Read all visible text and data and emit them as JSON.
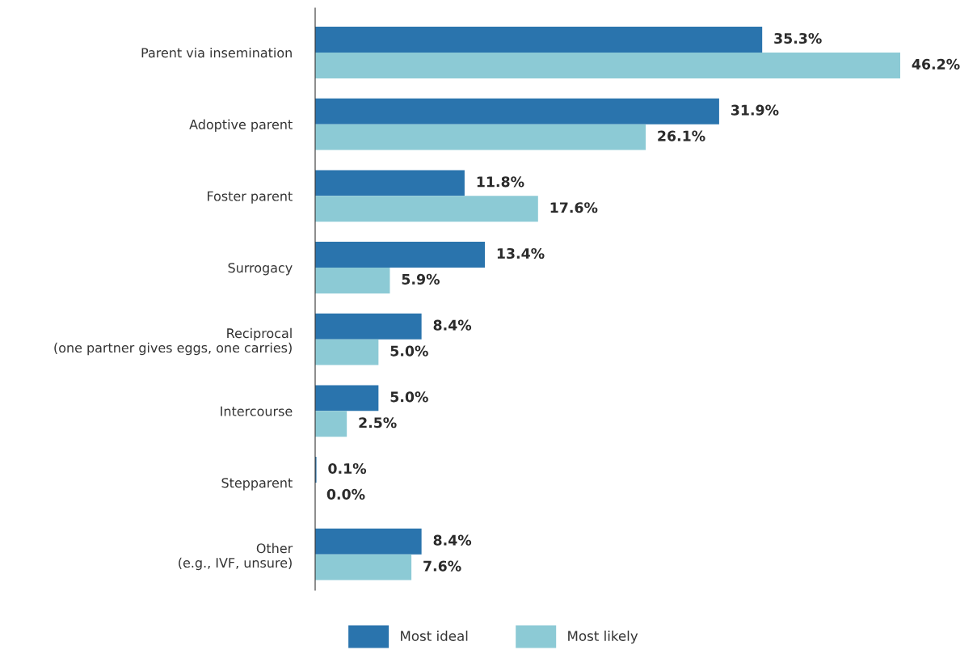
{
  "chart_data": {
    "type": "bar",
    "orientation": "horizontal",
    "categories": [
      "Parent via insemination",
      "Adoptive parent",
      "Foster parent",
      "Surrogacy",
      "Reciprocal\n(one partner gives eggs, one carries)",
      "Intercourse",
      "Stepparent",
      "Other\n(e.g., IVF, unsure)"
    ],
    "series": [
      {
        "name": "Most ideal",
        "color": "#2a74ad",
        "values": [
          35.3,
          31.9,
          11.8,
          13.4,
          8.4,
          5.0,
          0.1,
          8.4
        ],
        "value_labels": [
          "35.3%",
          "31.9%",
          "11.8%",
          "13.4%",
          "8.4%",
          "5.0%",
          "0.1%",
          "8.4%"
        ]
      },
      {
        "name": "Most likely",
        "color": "#8ccad5",
        "values": [
          46.2,
          26.1,
          17.6,
          5.9,
          5.0,
          2.5,
          0.0,
          7.6
        ],
        "value_labels": [
          "46.2%",
          "26.1%",
          "17.6%",
          "5.9%",
          "5.0%",
          "2.5%",
          "0.0%",
          "7.6%"
        ]
      }
    ],
    "legend": "bottom",
    "grid": false
  }
}
